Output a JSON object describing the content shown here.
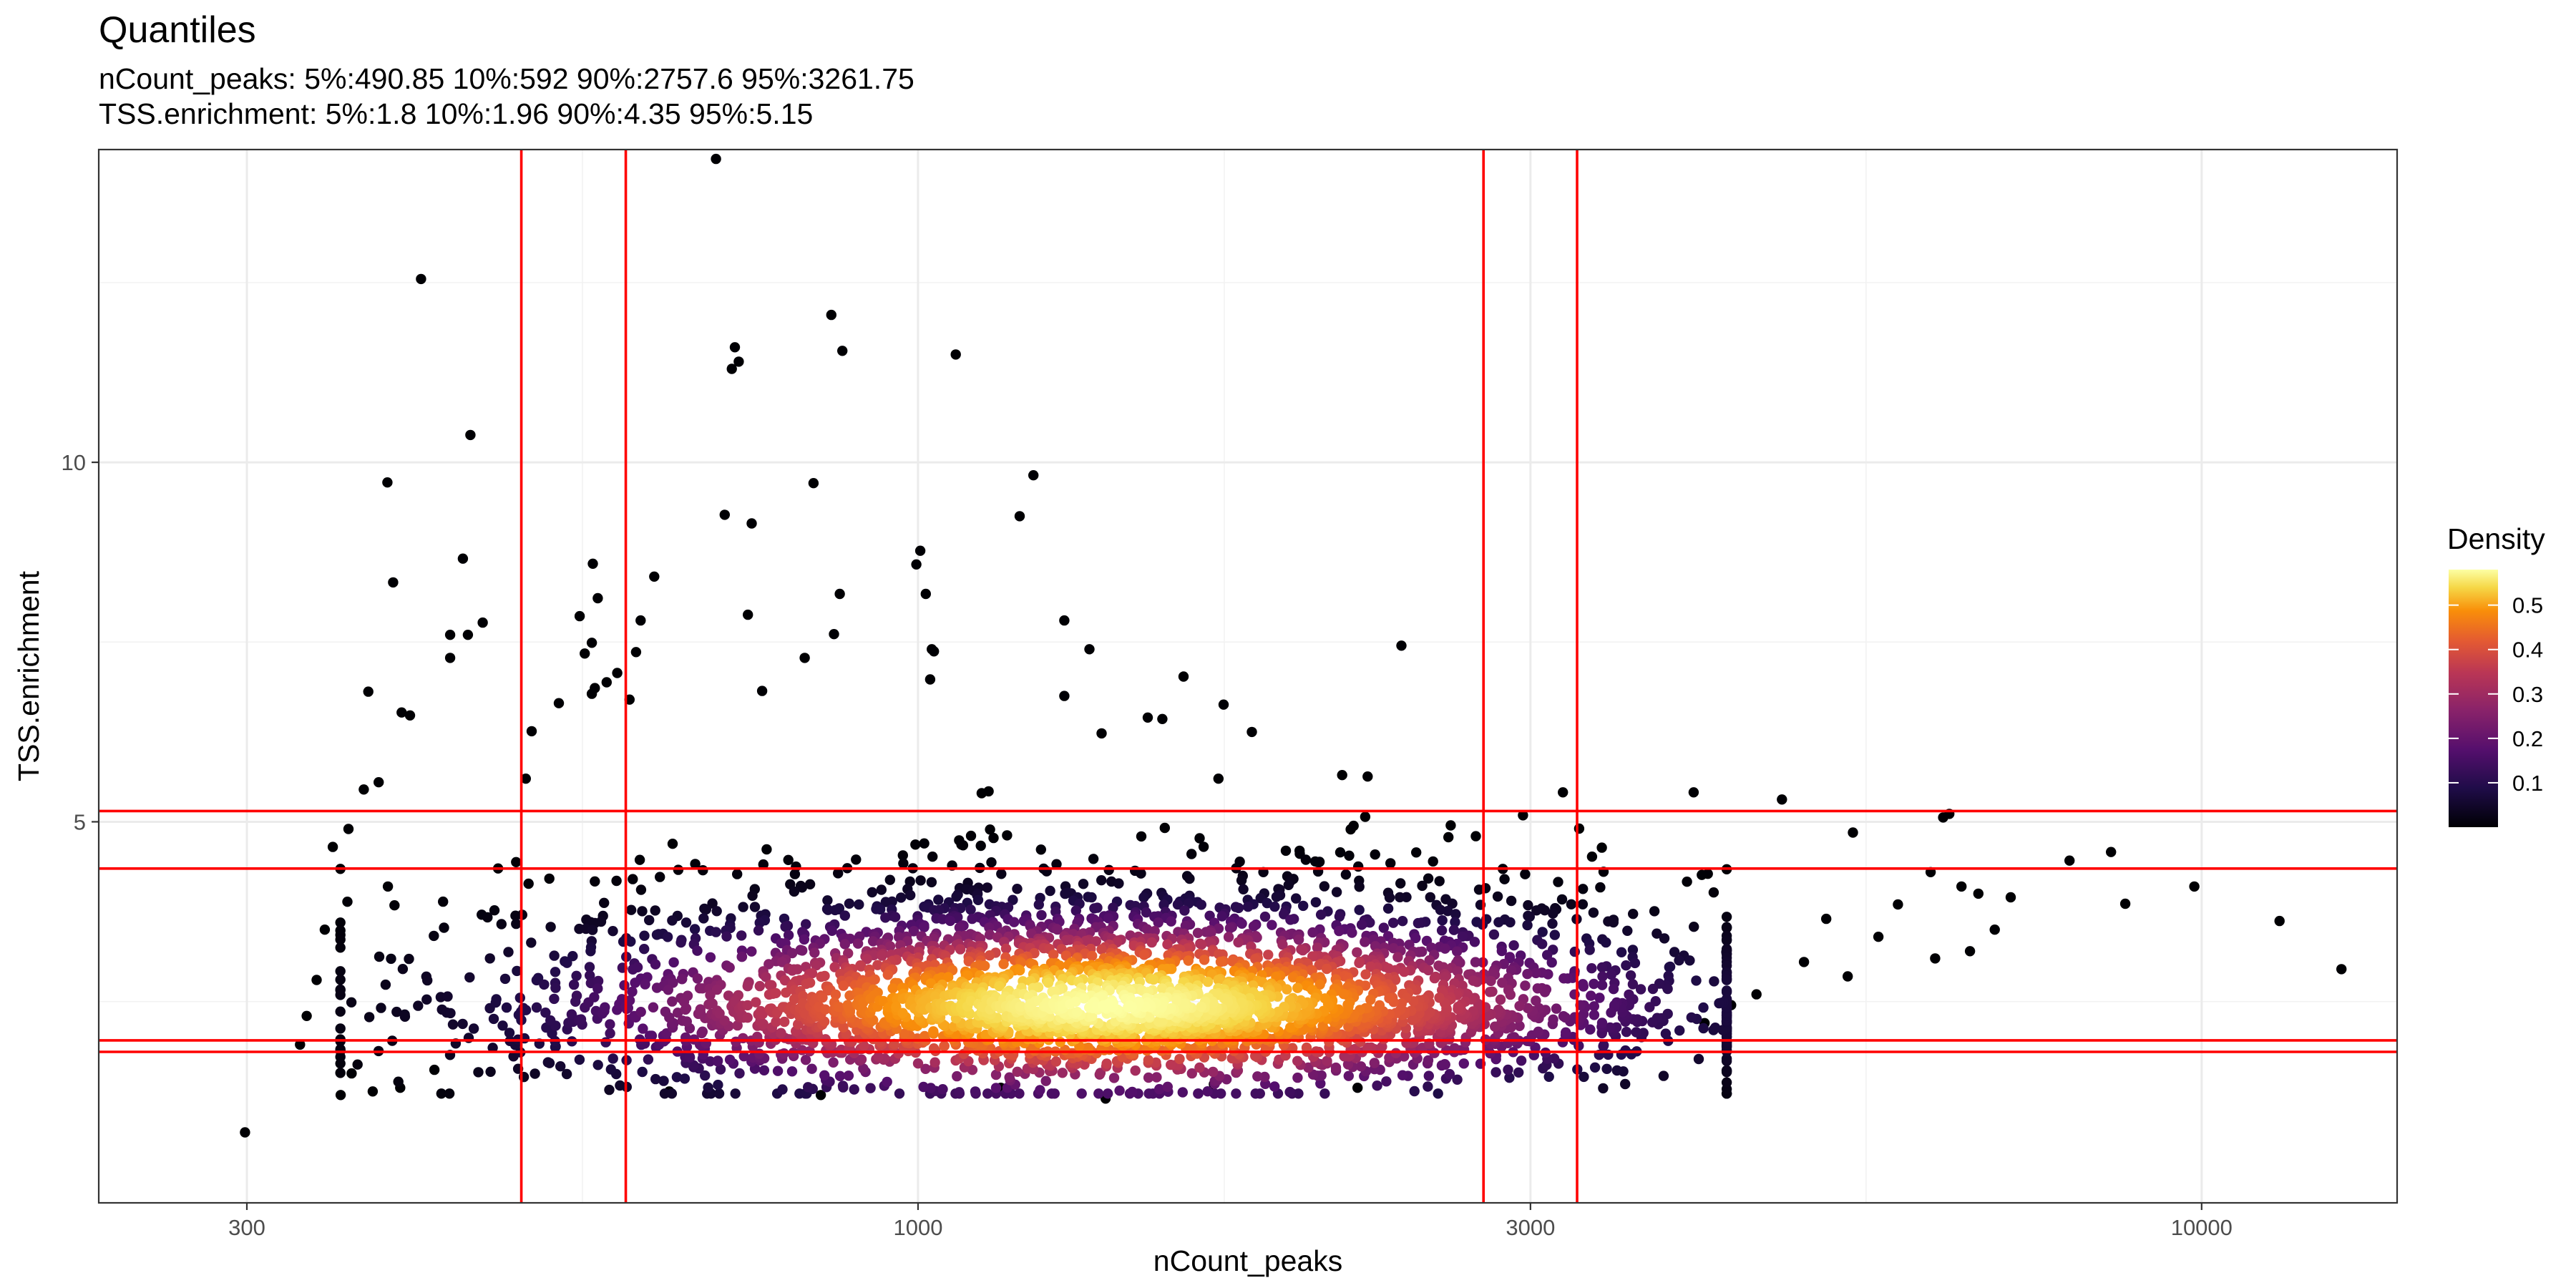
{
  "chart_data": {
    "type": "scatter",
    "title": "Quantiles",
    "subtitle": [
      "nCount_peaks: 5%:490.85 10%:592 90%:2757.6 95%:3261.75",
      "TSS.enrichment: 5%:1.8 10%:1.96 90%:4.35 95%:5.15"
    ],
    "xlabel": "nCount_peaks",
    "ylabel": "TSS.enrichment",
    "x_scale": "log10",
    "xlim": [
      230,
      14200
    ],
    "ylim": [
      -0.3,
      14.35
    ],
    "x_ticks": [
      300,
      1000,
      3000,
      10000
    ],
    "x_tick_labels": [
      "300",
      "1000",
      "3000",
      "10000"
    ],
    "y_ticks": [
      5,
      10
    ],
    "y_tick_labels": [
      "5",
      "10"
    ],
    "grid": true,
    "vlines": [
      490.85,
      592,
      2757.6,
      3261.75
    ],
    "hlines": [
      1.8,
      1.96,
      4.35,
      5.15
    ],
    "line_color": "#ff0000",
    "color_scale": "inferno",
    "legend": {
      "title": "Density",
      "placement": "right",
      "breaks": [
        0.1,
        0.2,
        0.3,
        0.4,
        0.5
      ],
      "labels": [
        "0.1",
        "0.2",
        "0.3",
        "0.4",
        "0.5"
      ],
      "range": [
        0.0,
        0.58
      ]
    },
    "density_core": {
      "x_log_center": 3.15,
      "x_log_sd": 0.23,
      "y_center": 2.45,
      "y_sd": 0.72,
      "point_count": 3600
    },
    "outlier_points": [
      [
        299,
        0.68
      ],
      [
        410,
        12.55
      ],
      [
        386,
        9.72
      ],
      [
        390,
        8.33
      ],
      [
        373,
        6.81
      ],
      [
        396,
        6.52
      ],
      [
        402,
        6.48
      ],
      [
        448,
        10.38
      ],
      [
        442,
        8.66
      ],
      [
        432,
        7.6
      ],
      [
        446,
        7.6
      ],
      [
        458,
        7.77
      ],
      [
        432,
        7.28
      ],
      [
        500,
        6.26
      ],
      [
        525,
        6.65
      ],
      [
        545,
        7.86
      ],
      [
        558,
        8.59
      ],
      [
        563,
        8.11
      ],
      [
        550,
        7.34
      ],
      [
        557,
        7.49
      ],
      [
        560,
        6.86
      ],
      [
        557,
        6.78
      ],
      [
        572,
        6.94
      ],
      [
        583,
        7.07
      ],
      [
        596,
        6.7
      ],
      [
        608,
        7.8
      ],
      [
        603,
        7.36
      ],
      [
        623,
        8.41
      ],
      [
        696,
        14.22
      ],
      [
        707,
        9.27
      ],
      [
        720,
        11.6
      ],
      [
        716,
        11.3
      ],
      [
        725,
        11.4
      ],
      [
        742,
        9.15
      ],
      [
        737,
        7.88
      ],
      [
        756,
        6.82
      ],
      [
        816,
        7.28
      ],
      [
        829,
        9.71
      ],
      [
        856,
        12.05
      ],
      [
        873,
        11.55
      ],
      [
        860,
        7.61
      ],
      [
        869,
        8.17
      ],
      [
        1070,
        11.5
      ],
      [
        1004,
        8.77
      ],
      [
        1014,
        8.17
      ],
      [
        997,
        8.58
      ],
      [
        1025,
        7.4
      ],
      [
        1029,
        7.37
      ],
      [
        1022,
        6.98
      ],
      [
        1230,
        9.82
      ],
      [
        1200,
        9.25
      ],
      [
        1300,
        7.8
      ],
      [
        1360,
        7.4
      ],
      [
        1610,
        7.02
      ],
      [
        1730,
        6.63
      ],
      [
        1820,
        6.25
      ],
      [
        2380,
        7.45
      ],
      [
        2140,
        5.65
      ],
      [
        2240,
        5.63
      ],
      [
        1300,
        6.75
      ],
      [
        1390,
        6.23
      ],
      [
        1510,
        6.45
      ],
      [
        1550,
        6.43
      ],
      [
        2960,
        5.09
      ],
      [
        3180,
        5.41
      ],
      [
        3410,
        4.64
      ],
      [
        4020,
        5.41
      ],
      [
        4710,
        5.31
      ],
      [
        5350,
        4.85
      ],
      [
        6150,
        4.3
      ],
      [
        6290,
        5.06
      ],
      [
        6360,
        5.11
      ],
      [
        7890,
        4.46
      ],
      [
        8500,
        4.58
      ],
      [
        8720,
        3.86
      ],
      [
        9870,
        4.1
      ],
      [
        11500,
        3.62
      ],
      [
        12850,
        2.95
      ],
      [
        5300,
        2.85
      ],
      [
        5600,
        3.4
      ],
      [
        6200,
        3.1
      ],
      [
        6600,
        3.2
      ],
      [
        6900,
        3.5
      ],
      [
        7100,
        3.95
      ],
      [
        4900,
        3.05
      ],
      [
        5100,
        3.65
      ],
      [
        5800,
        3.85
      ],
      [
        6500,
        4.1
      ],
      [
        6700,
        4.0
      ],
      [
        4100,
        2.2
      ],
      [
        4300,
        2.45
      ],
      [
        4500,
        2.6
      ],
      [
        2720,
        4.8
      ],
      [
        2600,
        4.95
      ],
      [
        330,
        1.9
      ],
      [
        334,
        2.3
      ],
      [
        340,
        2.8
      ],
      [
        345,
        3.5
      ],
      [
        355,
        1.2
      ],
      [
        362,
        1.5
      ],
      [
        376,
        1.25
      ],
      [
        395,
        1.3
      ],
      [
        420,
        1.55
      ],
      [
        350,
        4.65
      ],
      [
        360,
        4.9
      ],
      [
        370,
        5.45
      ],
      [
        380,
        5.55
      ],
      [
        1400,
        1.15
      ],
      [
        1160,
        1.3
      ],
      [
        1700,
        1.35
      ],
      [
        2200,
        1.3
      ],
      [
        640,
        1.25
      ],
      [
        840,
        1.2
      ]
    ]
  }
}
